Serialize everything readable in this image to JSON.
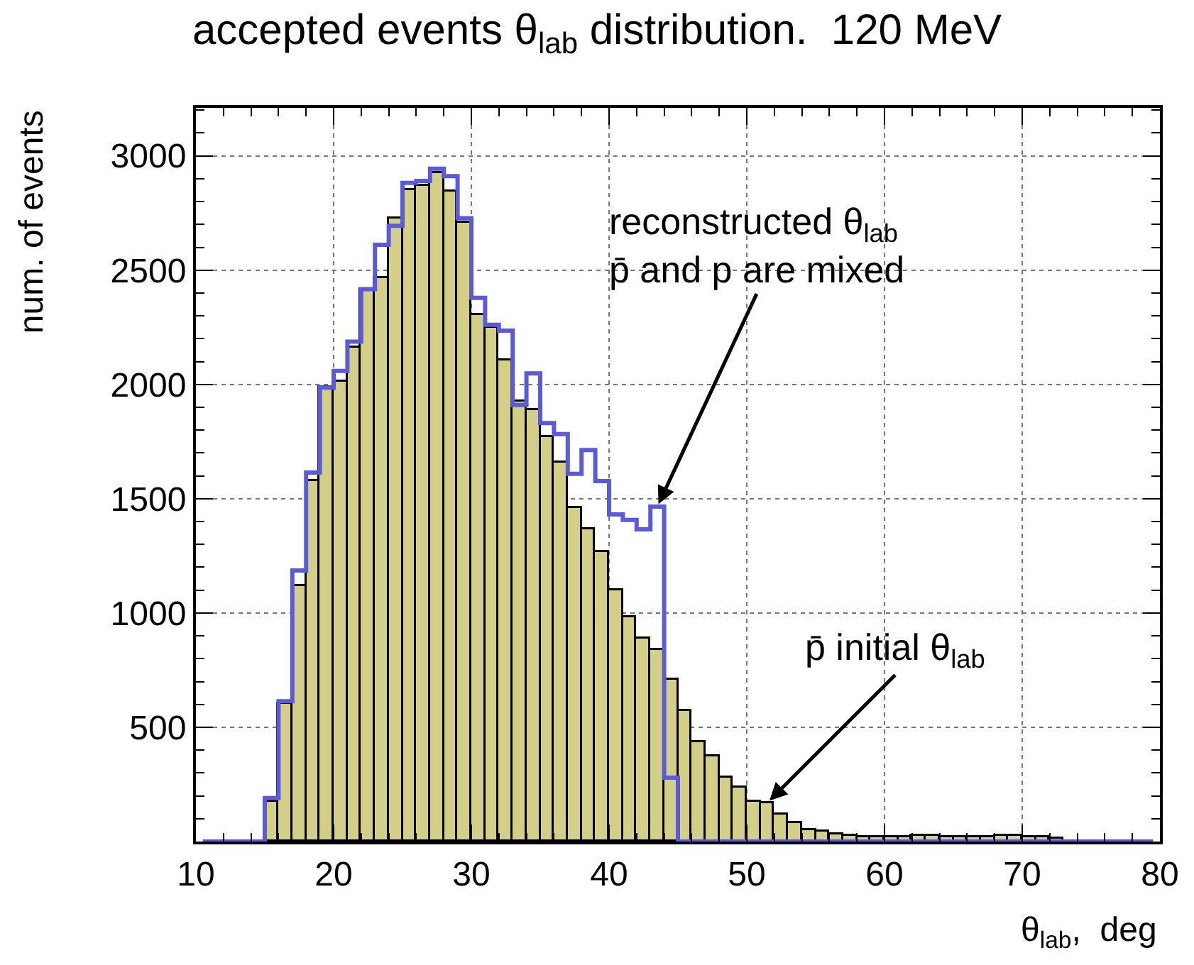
{
  "chart_data": {
    "type": "histogram",
    "title": "accepted events θ$_{lab}$ distribution.  120 MeV",
    "xlabel": "θ$_{lab}$,  deg",
    "ylabel": "num. of events",
    "bins": [
      10,
      11,
      12,
      13,
      14,
      15,
      16,
      17,
      18,
      19,
      20,
      21,
      22,
      23,
      24,
      25,
      26,
      27,
      28,
      29,
      30,
      31,
      32,
      33,
      34,
      35,
      36,
      37,
      38,
      39,
      40,
      41,
      42,
      43,
      44,
      45,
      46,
      47,
      48,
      49,
      50,
      51,
      52,
      53,
      54,
      55,
      56,
      57,
      58,
      59,
      60,
      61,
      62,
      63,
      64,
      65,
      66,
      67,
      68,
      69,
      70,
      71,
      72,
      73,
      74,
      75,
      76,
      77,
      78,
      79,
      80
    ],
    "series": [
      {
        "type": "histogram",
        "color": "#d3cf88",
        "values": [
          0,
          0,
          0,
          0,
          0,
          172,
          600,
          1117,
          1577,
          1986,
          2013,
          2162,
          2417,
          2468,
          2727,
          2851,
          2870,
          2924,
          2845,
          2710,
          2301,
          2249,
          2104,
          1924,
          1890,
          1769,
          1655,
          1459,
          1369,
          1266,
          1100,
          983,
          889,
          838,
          708,
          569,
          434,
          372,
          279,
          238,
          175,
          170,
          120,
          78,
          47,
          41,
          31,
          25,
          20,
          20,
          20,
          20,
          25,
          25,
          20,
          20,
          20,
          20,
          25,
          25,
          20,
          20,
          15,
          0,
          0,
          0,
          0,
          0,
          0,
          0
        ]
      },
      {
        "type": "step",
        "color": "#5a5adc",
        "x": [
          10.5,
          11.5,
          12.5,
          13.5,
          14.5,
          15.5,
          16.5,
          17.5,
          18.5,
          19.5,
          20.5,
          21.5,
          22.5,
          23.5,
          24.5,
          25.5,
          26.5,
          27.5,
          28.5,
          29.5,
          30.5,
          31.5,
          32.5,
          33.5,
          34.5,
          35.5,
          36.5,
          37.5,
          38.5,
          39.5,
          40.5,
          41.5,
          42.5,
          43.5,
          44.5,
          45.5,
          46.5,
          47.5,
          48.5,
          49.5,
          50.5,
          51.5,
          52.5,
          53.5,
          54.5,
          55.5,
          56.5,
          57.5,
          58.5,
          59.5,
          60.5,
          61.5,
          62.5,
          63.5,
          64.5,
          65.5,
          66.5,
          67.5,
          68.5,
          69.5,
          70.5,
          71.5,
          72.5,
          73.5,
          74.5,
          75.5,
          76.5,
          77.5,
          78.5,
          79.5
        ],
        "values": [
          0,
          0,
          0,
          0,
          0,
          190,
          614,
          1186,
          1614,
          1986,
          2059,
          2187,
          2417,
          2611,
          2694,
          2882,
          2890,
          2944,
          2911,
          2727,
          2379,
          2261,
          2235,
          1910,
          2048,
          1831,
          1783,
          1609,
          1713,
          1577,
          1431,
          1407,
          1366,
          1465,
          279,
          0,
          0,
          0,
          0,
          0,
          0,
          0,
          0,
          0,
          0,
          0,
          0,
          0,
          0,
          0,
          0,
          0,
          0,
          0,
          0,
          0,
          0,
          0,
          0,
          0,
          0,
          0,
          0,
          0,
          0,
          0,
          0,
          0,
          0,
          0
        ]
      }
    ],
    "annotations": [
      {
        "text": "reconstructed θ$_{lab}$\np̄ and p are mixed",
        "x": 43.5,
        "y": 1465
      },
      {
        "text": "p̄ initial θ$_{lab}$",
        "x": 51.5,
        "y": 170
      }
    ],
    "xlim": [
      10,
      80
    ],
    "ylim": [
      0,
      3210
    ],
    "xticks": [
      10,
      20,
      30,
      40,
      50,
      60,
      70,
      80
    ],
    "yticks": [
      500,
      1000,
      1500,
      2000,
      2500,
      3000
    ],
    "grid": true,
    "marker": "none",
    "line_style": "solid"
  }
}
